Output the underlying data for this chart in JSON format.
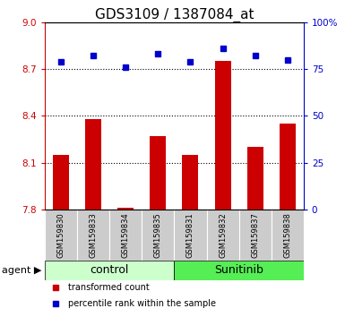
{
  "title": "GDS3109 / 1387084_at",
  "samples": [
    "GSM159830",
    "GSM159833",
    "GSM159834",
    "GSM159835",
    "GSM159831",
    "GSM159832",
    "GSM159837",
    "GSM159838"
  ],
  "red_values": [
    8.15,
    8.38,
    7.81,
    8.27,
    8.15,
    8.75,
    8.2,
    8.35
  ],
  "blue_values": [
    79,
    82,
    76,
    83,
    79,
    86,
    82,
    80
  ],
  "groups": [
    {
      "label": "control",
      "start": 0,
      "end": 4,
      "color": "#ccffcc"
    },
    {
      "label": "Sunitinib",
      "start": 4,
      "end": 8,
      "color": "#55ee55"
    }
  ],
  "ylim_left": [
    7.8,
    9.0
  ],
  "ylim_right": [
    0,
    100
  ],
  "yticks_left": [
    7.8,
    8.1,
    8.4,
    8.7,
    9.0
  ],
  "yticks_right": [
    0,
    25,
    50,
    75,
    100
  ],
  "ytick_labels_right": [
    "0",
    "25",
    "50",
    "75",
    "100%"
  ],
  "red_color": "#cc0000",
  "blue_color": "#0000cc",
  "bar_width": 0.5,
  "agent_label": "agent",
  "legend_red": "transformed count",
  "legend_blue": "percentile rank within the sample",
  "sample_bg_color": "#cccccc",
  "title_fontsize": 11,
  "tick_fontsize": 7.5,
  "sample_fontsize": 6,
  "group_fontsize": 9,
  "legend_fontsize": 7,
  "agent_fontsize": 8
}
